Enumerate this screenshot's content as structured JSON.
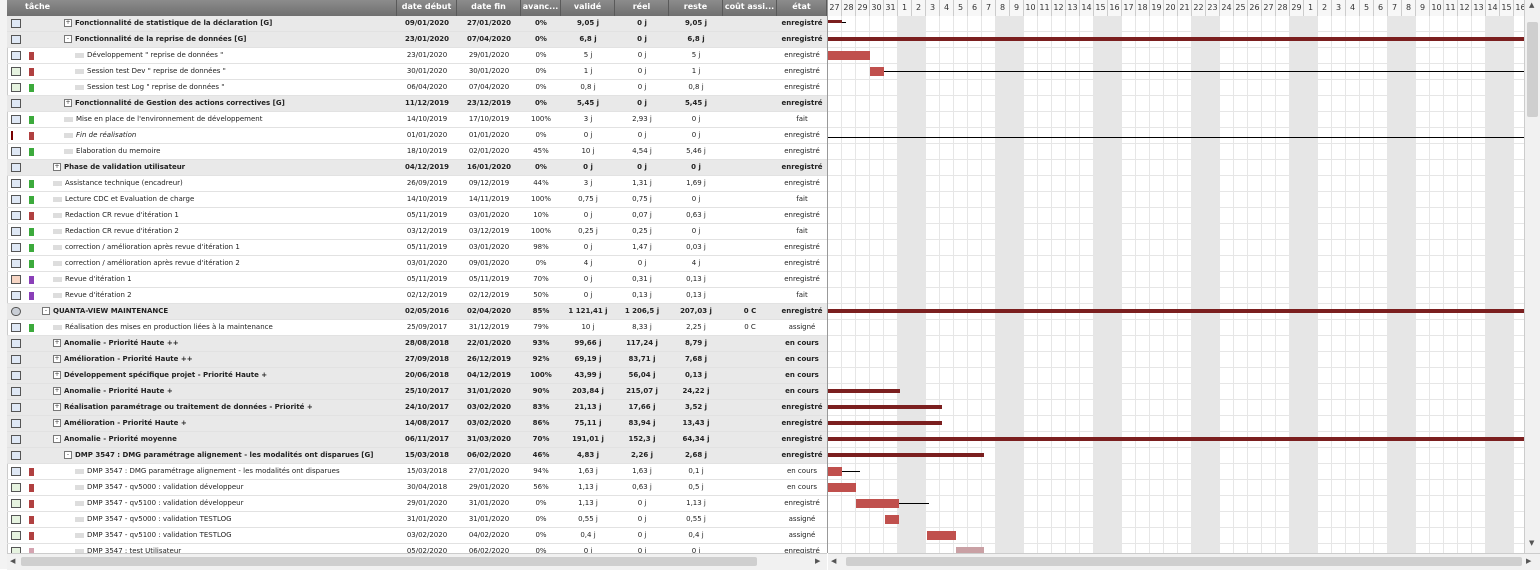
{
  "columns": {
    "tache": "tâche",
    "date_debut": "date début",
    "date_fin": "date fin",
    "avancement": "avanc...",
    "valide": "validé",
    "reel": "réel",
    "reste": "reste",
    "cout": "coût assi...",
    "etat": "état"
  },
  "rows": [
    {
      "level": 2,
      "group": true,
      "toggle": "+",
      "icon": "monitor",
      "flag": "",
      "name": "Fonctionnalité de statistique de la déclaration [G]",
      "debut": "09/01/2020",
      "fin": "27/01/2020",
      "avanc": "0%",
      "valide": "9,05 j",
      "reel": "0 j",
      "reste": "9,05 j",
      "cout": "",
      "etat": "enregistré"
    },
    {
      "level": 2,
      "group": true,
      "toggle": "-",
      "icon": "monitor",
      "flag": "",
      "name": "Fonctionnalité de la reprise de données [G]",
      "debut": "23/01/2020",
      "fin": "07/04/2020",
      "avanc": "0%",
      "valide": "6,8 j",
      "reel": "0 j",
      "reste": "6,8 j",
      "cout": "",
      "etat": "enregistré"
    },
    {
      "level": 3,
      "group": false,
      "toggle": "",
      "icon": "monitor",
      "flag": "red",
      "name": "Développement \" reprise de données \"",
      "debut": "23/01/2020",
      "fin": "29/01/2020",
      "avanc": "0%",
      "valide": "5 j",
      "reel": "0 j",
      "reste": "5 j",
      "cout": "",
      "etat": "enregistré"
    },
    {
      "level": 3,
      "group": false,
      "toggle": "",
      "icon": "check",
      "flag": "red",
      "name": "Session test Dev \" reprise de données \"",
      "debut": "30/01/2020",
      "fin": "30/01/2020",
      "avanc": "0%",
      "valide": "1 j",
      "reel": "0 j",
      "reste": "1 j",
      "cout": "",
      "etat": "enregistré"
    },
    {
      "level": 3,
      "group": false,
      "toggle": "",
      "icon": "check",
      "flag": "green",
      "name": "Session test Log \" reprise de données \"",
      "debut": "06/04/2020",
      "fin": "07/04/2020",
      "avanc": "0%",
      "valide": "0,8 j",
      "reel": "0 j",
      "reste": "0,8 j",
      "cout": "",
      "etat": "enregistré"
    },
    {
      "level": 2,
      "group": true,
      "toggle": "+",
      "icon": "monitor",
      "flag": "",
      "name": "Fonctionnalité de Gestion des actions correctives [G]",
      "debut": "11/12/2019",
      "fin": "23/12/2019",
      "avanc": "0%",
      "valide": "5,45 j",
      "reel": "0 j",
      "reste": "5,45 j",
      "cout": "",
      "etat": "enregistré"
    },
    {
      "level": 2,
      "group": false,
      "toggle": "",
      "icon": "monitor",
      "flag": "green",
      "name": "Mise en place de l'environnement de développement",
      "debut": "14/10/2019",
      "fin": "17/10/2019",
      "avanc": "100%",
      "valide": "3 j",
      "reel": "2,93 j",
      "reste": "0 j",
      "cout": "",
      "etat": "fait"
    },
    {
      "level": 2,
      "group": false,
      "toggle": "",
      "icon": "redflag",
      "flag": "red",
      "name": "Fin de réalisation",
      "debut": "01/01/2020",
      "fin": "01/01/2020",
      "avanc": "0%",
      "valide": "0 j",
      "reel": "0 j",
      "reste": "0 j",
      "cout": "",
      "etat": "enregistré",
      "italic": true
    },
    {
      "level": 2,
      "group": false,
      "toggle": "",
      "icon": "monitor",
      "flag": "green",
      "name": "Elaboration du memoire",
      "debut": "18/10/2019",
      "fin": "02/01/2020",
      "avanc": "45%",
      "valide": "10 j",
      "reel": "4,54 j",
      "reste": "5,46 j",
      "cout": "",
      "etat": "enregistré"
    },
    {
      "level": 1,
      "group": true,
      "toggle": "+",
      "icon": "monitor",
      "flag": "",
      "name": "Phase de validation utilisateur",
      "debut": "04/12/2019",
      "fin": "16/01/2020",
      "avanc": "0%",
      "valide": "0 j",
      "reel": "0 j",
      "reste": "0 j",
      "cout": "",
      "etat": "enregistré"
    },
    {
      "level": 1,
      "group": false,
      "toggle": "",
      "icon": "monitor",
      "flag": "green",
      "name": "Assistance technique (encadreur)",
      "debut": "26/09/2019",
      "fin": "09/12/2019",
      "avanc": "44%",
      "valide": "3 j",
      "reel": "1,31 j",
      "reste": "1,69 j",
      "cout": "",
      "etat": "enregistré"
    },
    {
      "level": 1,
      "group": false,
      "toggle": "",
      "icon": "monitor",
      "flag": "green",
      "name": "Lecture CDC et Evaluation de charge",
      "debut": "14/10/2019",
      "fin": "14/11/2019",
      "avanc": "100%",
      "valide": "0,75 j",
      "reel": "0,75 j",
      "reste": "0 j",
      "cout": "",
      "etat": "fait"
    },
    {
      "level": 1,
      "group": false,
      "toggle": "",
      "icon": "monitor",
      "flag": "red",
      "name": "Redaction CR revue d'itération 1",
      "debut": "05/11/2019",
      "fin": "03/01/2020",
      "avanc": "10%",
      "valide": "0 j",
      "reel": "0,07 j",
      "reste": "0,63 j",
      "cout": "",
      "etat": "enregistré"
    },
    {
      "level": 1,
      "group": false,
      "toggle": "",
      "icon": "monitor",
      "flag": "green",
      "name": "Redaction CR revue d'itération 2",
      "debut": "03/12/2019",
      "fin": "03/12/2019",
      "avanc": "100%",
      "valide": "0,25 j",
      "reel": "0,25 j",
      "reste": "0 j",
      "cout": "",
      "etat": "fait"
    },
    {
      "level": 1,
      "group": false,
      "toggle": "",
      "icon": "monitor",
      "flag": "green",
      "name": "correction / amélioration après revue d'itération 1",
      "debut": "05/11/2019",
      "fin": "03/01/2020",
      "avanc": "98%",
      "valide": "0 j",
      "reel": "1,47 j",
      "reste": "0,03 j",
      "cout": "",
      "etat": "enregistré"
    },
    {
      "level": 1,
      "group": false,
      "toggle": "",
      "icon": "monitor",
      "flag": "green",
      "name": "correction / amélioration après revue d'itération 2",
      "debut": "03/01/2020",
      "fin": "09/01/2020",
      "avanc": "0%",
      "valide": "4 j",
      "reel": "0 j",
      "reste": "4 j",
      "cout": "",
      "etat": "enregistré"
    },
    {
      "level": 1,
      "group": false,
      "toggle": "",
      "icon": "people",
      "flag": "purple",
      "name": "Revue d'itération 1",
      "debut": "05/11/2019",
      "fin": "05/11/2019",
      "avanc": "70%",
      "valide": "0 j",
      "reel": "0,31 j",
      "reste": "0,13 j",
      "cout": "",
      "etat": "enregistré"
    },
    {
      "level": 1,
      "group": false,
      "toggle": "",
      "icon": "monitor",
      "flag": "purple",
      "name": "Revue d'itération 2",
      "debut": "02/12/2019",
      "fin": "02/12/2019",
      "avanc": "50%",
      "valide": "0 j",
      "reel": "0,13 j",
      "reste": "0,13 j",
      "cout": "",
      "etat": "fait"
    },
    {
      "level": 0,
      "group": true,
      "toggle": "-",
      "icon": "gear",
      "flag": "",
      "name": "QUANTA-VIEW MAINTENANCE",
      "debut": "02/05/2016",
      "fin": "02/04/2020",
      "avanc": "85%",
      "valide": "1 121,41 j",
      "reel": "1 206,5 j",
      "reste": "207,03 j",
      "cout": "0 C",
      "etat": "enregistré"
    },
    {
      "level": 1,
      "group": false,
      "toggle": "",
      "icon": "monitor",
      "flag": "green",
      "name": "Réalisation des mises en production liées à la maintenance",
      "debut": "25/09/2017",
      "fin": "31/12/2019",
      "avanc": "79%",
      "valide": "10 j",
      "reel": "8,33 j",
      "reste": "2,25 j",
      "cout": "0 C",
      "etat": "assigné"
    },
    {
      "level": 1,
      "group": true,
      "toggle": "+",
      "icon": "monitor",
      "flag": "",
      "name": "Anomalie - Priorité Haute ++",
      "debut": "28/08/2018",
      "fin": "22/01/2020",
      "avanc": "93%",
      "valide": "99,66 j",
      "reel": "117,24 j",
      "reste": "8,79 j",
      "cout": "",
      "etat": "en cours"
    },
    {
      "level": 1,
      "group": true,
      "toggle": "+",
      "icon": "monitor",
      "flag": "",
      "name": "Amélioration - Priorité Haute ++",
      "debut": "27/09/2018",
      "fin": "26/12/2019",
      "avanc": "92%",
      "valide": "69,19 j",
      "reel": "83,71 j",
      "reste": "7,68 j",
      "cout": "",
      "etat": "en cours"
    },
    {
      "level": 1,
      "group": true,
      "toggle": "+",
      "icon": "monitor",
      "flag": "",
      "name": "Développement spécifique projet - Priorité Haute +",
      "debut": "20/06/2018",
      "fin": "04/12/2019",
      "avanc": "100%",
      "valide": "43,99 j",
      "reel": "56,04 j",
      "reste": "0,13 j",
      "cout": "",
      "etat": "en cours"
    },
    {
      "level": 1,
      "group": true,
      "toggle": "+",
      "icon": "monitor",
      "flag": "",
      "name": "Anomalie - Priorité Haute +",
      "debut": "25/10/2017",
      "fin": "31/01/2020",
      "avanc": "90%",
      "valide": "203,84 j",
      "reel": "215,07 j",
      "reste": "24,22 j",
      "cout": "",
      "etat": "en cours"
    },
    {
      "level": 1,
      "group": true,
      "toggle": "+",
      "icon": "monitor",
      "flag": "",
      "name": "Réalisation paramétrage ou traitement de données - Priorité +",
      "debut": "24/10/2017",
      "fin": "03/02/2020",
      "avanc": "83%",
      "valide": "21,13 j",
      "reel": "17,66 j",
      "reste": "3,52 j",
      "cout": "",
      "etat": "enregistré"
    },
    {
      "level": 1,
      "group": true,
      "toggle": "+",
      "icon": "monitor",
      "flag": "",
      "name": "Amélioration - Priorité Haute +",
      "debut": "14/08/2017",
      "fin": "03/02/2020",
      "avanc": "86%",
      "valide": "75,11 j",
      "reel": "83,94 j",
      "reste": "13,43 j",
      "cout": "",
      "etat": "enregistré"
    },
    {
      "level": 1,
      "group": true,
      "toggle": "-",
      "icon": "monitor",
      "flag": "",
      "name": "Anomalie - Priorité moyenne",
      "debut": "06/11/2017",
      "fin": "31/03/2020",
      "avanc": "70%",
      "valide": "191,01 j",
      "reel": "152,3 j",
      "reste": "64,34 j",
      "cout": "",
      "etat": "enregistré"
    },
    {
      "level": 2,
      "group": true,
      "toggle": "-",
      "icon": "monitor",
      "flag": "",
      "name": "DMP 3547 : DMG paramétrage alignement - les modalités ont disparues [G]",
      "debut": "15/03/2018",
      "fin": "06/02/2020",
      "avanc": "46%",
      "valide": "4,83 j",
      "reel": "2,26 j",
      "reste": "2,68 j",
      "cout": "",
      "etat": "enregistré"
    },
    {
      "level": 3,
      "group": false,
      "toggle": "",
      "icon": "monitor",
      "flag": "red",
      "name": "DMP 3547 : DMG paramétrage alignement - les modalités ont disparues",
      "debut": "15/03/2018",
      "fin": "27/01/2020",
      "avanc": "94%",
      "valide": "1,63 j",
      "reel": "1,63 j",
      "reste": "0,1 j",
      "cout": "",
      "etat": "en cours"
    },
    {
      "level": 3,
      "group": false,
      "toggle": "",
      "icon": "check",
      "flag": "red",
      "name": "DMP 3547 - qv5000 : validation développeur",
      "debut": "30/04/2018",
      "fin": "29/01/2020",
      "avanc": "56%",
      "valide": "1,13 j",
      "reel": "0,63 j",
      "reste": "0,5 j",
      "cout": "",
      "etat": "en cours"
    },
    {
      "level": 3,
      "group": false,
      "toggle": "",
      "icon": "check",
      "flag": "red",
      "name": "DMP 3547 - qv5100 : validation développeur",
      "debut": "29/01/2020",
      "fin": "31/01/2020",
      "avanc": "0%",
      "valide": "1,13 j",
      "reel": "0 j",
      "reste": "1,13 j",
      "cout": "",
      "etat": "enregistré"
    },
    {
      "level": 3,
      "group": false,
      "toggle": "",
      "icon": "check",
      "flag": "red",
      "name": "DMP 3547 - qv5000 : validation TESTLOG",
      "debut": "31/01/2020",
      "fin": "31/01/2020",
      "avanc": "0%",
      "valide": "0,55 j",
      "reel": "0 j",
      "reste": "0,55 j",
      "cout": "",
      "etat": "assigné"
    },
    {
      "level": 3,
      "group": false,
      "toggle": "",
      "icon": "check",
      "flag": "red",
      "name": "DMP 3547 - qv5100 : validation TESTLOG",
      "debut": "03/02/2020",
      "fin": "04/02/2020",
      "avanc": "0%",
      "valide": "0,4 j",
      "reel": "0 j",
      "reste": "0,4 j",
      "cout": "",
      "etat": "assigné"
    },
    {
      "level": 3,
      "group": false,
      "toggle": "",
      "icon": "check",
      "flag": "pink",
      "name": "DMP 3547 : test Utilisateur",
      "debut": "05/02/2020",
      "fin": "06/02/2020",
      "avanc": "0%",
      "valide": "0 j",
      "reel": "0 j",
      "reste": "0 j",
      "cout": "",
      "etat": "enregistré"
    }
  ],
  "gantt": {
    "days": [
      "27",
      "28",
      "29",
      "30",
      "31",
      "1",
      "2",
      "3",
      "4",
      "5",
      "6",
      "7",
      "8",
      "9",
      "10",
      "11",
      "12",
      "13",
      "14",
      "15",
      "16",
      "17",
      "18",
      "19",
      "20",
      "21",
      "22",
      "23",
      "24",
      "25",
      "26",
      "27",
      "28",
      "29",
      "1",
      "2",
      "3",
      "4",
      "5",
      "6",
      "7",
      "8",
      "9",
      "10",
      "11",
      "12",
      "13",
      "14",
      "15",
      "16"
    ],
    "weekend_indices": [
      5,
      6,
      12,
      13,
      19,
      20,
      26,
      27,
      33,
      34,
      40,
      41,
      47,
      48
    ]
  },
  "colors": {
    "summary_bar": "#7b1f1f",
    "task_bar": "#c0504d",
    "task_bar_light": "#c9a0a4",
    "flag_red": "#b04040",
    "flag_green": "#3caa3c",
    "flag_purple": "#8a3fb8",
    "flag_pink": "#d4a3b0"
  }
}
